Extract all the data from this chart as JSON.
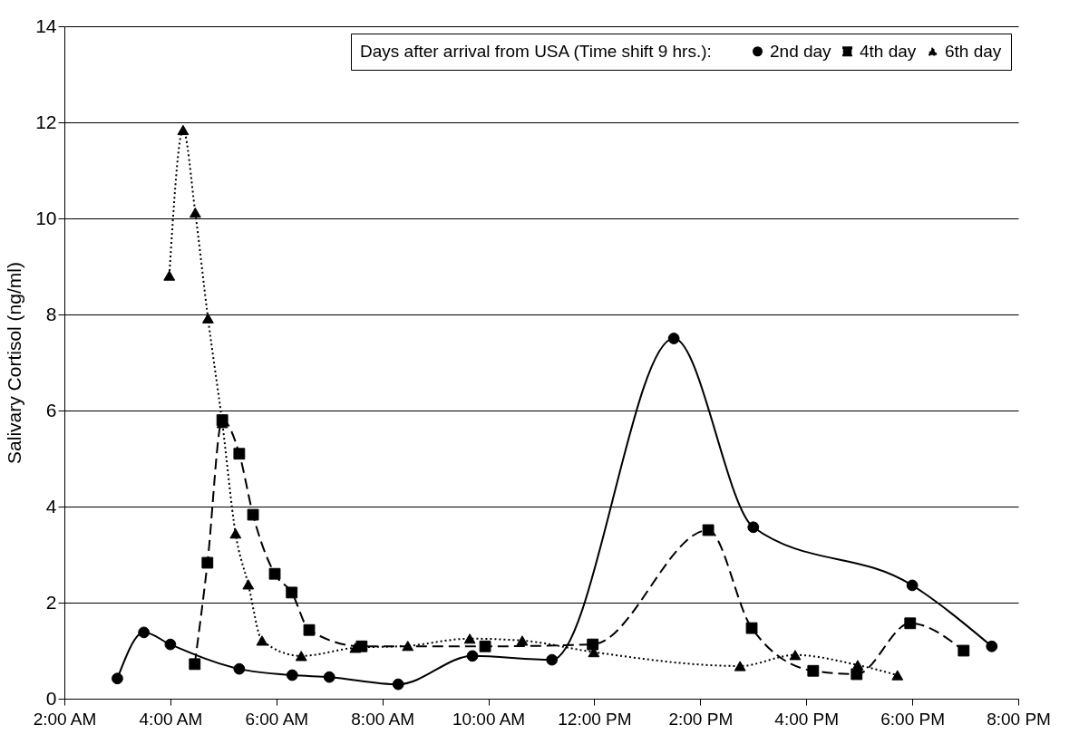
{
  "chart_data": {
    "type": "line",
    "ylabel": "Salivary Cortisol (ng/ml)",
    "legend_title": "Days after arrival from USA (Time shift 9 hrs.):",
    "legend": "top right",
    "grid": "y",
    "xlim": [
      2,
      20
    ],
    "xticks": [
      {
        "value": 2,
        "label": "2:00 AM"
      },
      {
        "value": 4,
        "label": "4:00 AM"
      },
      {
        "value": 6,
        "label": "6:00 AM"
      },
      {
        "value": 8,
        "label": "8:00 AM"
      },
      {
        "value": 10,
        "label": "10:00 AM"
      },
      {
        "value": 12,
        "label": "12:00 PM"
      },
      {
        "value": 14,
        "label": "2:00 PM"
      },
      {
        "value": 16,
        "label": "4:00 PM"
      },
      {
        "value": 18,
        "label": "6:00 PM"
      },
      {
        "value": 20,
        "label": "8:00 PM"
      }
    ],
    "ylim": [
      0,
      14
    ],
    "yticks": [
      0,
      2,
      4,
      6,
      8,
      10,
      12,
      14
    ],
    "series": [
      {
        "name": "2nd day",
        "color": "#000000",
        "marker": "circle",
        "line_style": "solid",
        "x": [
          3.0,
          3.5,
          4.0,
          5.3,
          6.3,
          7.0,
          8.3,
          9.7,
          11.2,
          13.5,
          15.0,
          18.0,
          19.5
        ],
        "values": [
          0.42,
          1.38,
          1.13,
          0.62,
          0.49,
          0.45,
          0.3,
          0.89,
          0.81,
          7.5,
          3.57,
          2.36,
          1.09
        ]
      },
      {
        "name": "4th day",
        "color": "#000000",
        "marker": "square",
        "line_style": "dashed",
        "x": [
          4.46,
          4.7,
          4.98,
          5.3,
          5.56,
          5.97,
          6.29,
          6.62,
          7.61,
          9.94,
          11.97,
          14.15,
          14.97,
          16.13,
          16.95,
          17.96,
          18.97
        ],
        "values": [
          0.72,
          2.83,
          5.8,
          5.1,
          3.83,
          2.6,
          2.21,
          1.43,
          1.09,
          1.09,
          1.13,
          3.51,
          1.47,
          0.58,
          0.51,
          1.57,
          1.0
        ]
      },
      {
        "name": "6th day",
        "color": "#000000",
        "marker": "triangle",
        "line_style": "dotted",
        "x": [
          3.98,
          4.24,
          4.47,
          4.71,
          4.98,
          5.23,
          5.47,
          5.73,
          6.47,
          7.49,
          8.48,
          9.65,
          10.64,
          11.99,
          14.75,
          15.79,
          16.97,
          17.72
        ],
        "values": [
          8.81,
          11.84,
          10.12,
          7.92,
          5.74,
          3.44,
          2.38,
          1.21,
          0.89,
          1.06,
          1.1,
          1.25,
          1.21,
          0.97,
          0.68,
          0.91,
          0.7,
          0.49
        ]
      }
    ]
  }
}
